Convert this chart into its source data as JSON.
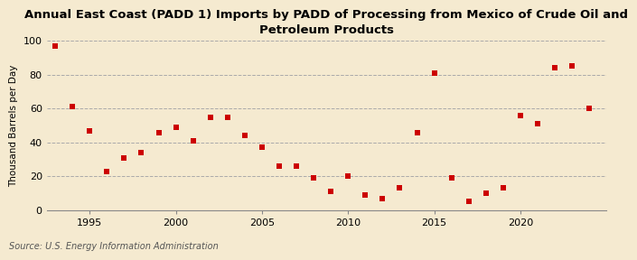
{
  "title": "Annual East Coast (PADD 1) Imports by PADD of Processing from Mexico of Crude Oil and\nPetroleum Products",
  "ylabel": "Thousand Barrels per Day",
  "source": "Source: U.S. Energy Information Administration",
  "background_color": "#f5ead0",
  "plot_bg_color": "#f5ead0",
  "marker_color": "#cc0000",
  "years": [
    1993,
    1994,
    1995,
    1996,
    1997,
    1998,
    1999,
    2000,
    2001,
    2002,
    2003,
    2004,
    2005,
    2006,
    2007,
    2008,
    2009,
    2010,
    2011,
    2012,
    2013,
    2014,
    2015,
    2016,
    2017,
    2018,
    2019,
    2020,
    2021,
    2022,
    2023,
    2024
  ],
  "values": [
    97,
    61,
    47,
    23,
    31,
    34,
    46,
    49,
    41,
    55,
    55,
    44,
    37,
    26,
    26,
    19,
    11,
    20,
    9,
    7,
    13,
    46,
    81,
    19,
    5,
    10,
    13,
    56,
    51,
    84,
    85,
    60
  ],
  "xlim": [
    1992.5,
    2025
  ],
  "ylim": [
    0,
    100
  ],
  "yticks": [
    0,
    20,
    40,
    60,
    80,
    100
  ],
  "xticks": [
    1995,
    2000,
    2005,
    2010,
    2015,
    2020
  ],
  "title_fontsize": 9.5,
  "label_fontsize": 7.5,
  "tick_fontsize": 8,
  "source_fontsize": 7,
  "marker_size": 18,
  "grid_color": "#aaaaaa",
  "grid_style": "--",
  "grid_linewidth": 0.7
}
